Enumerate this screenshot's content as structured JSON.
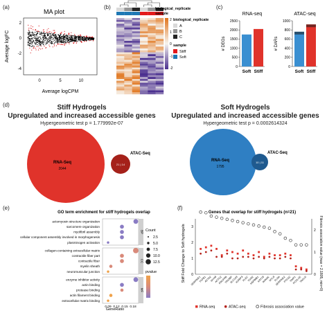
{
  "panels": {
    "a": "(a)",
    "b": "(b)",
    "c": "(c)",
    "d": "(d)",
    "e": "(e)",
    "f": "(f)"
  },
  "ma_plot": {
    "title": "MA plot",
    "xlabel": "Average logCPM",
    "ylabel": "Average logFC",
    "x_ticks": [
      "0",
      "5",
      "10"
    ],
    "y_ticks": [
      "2",
      "0",
      "-2",
      "-4"
    ],
    "colors": {
      "up": "#d7191c",
      "nonsig": "#000000"
    }
  },
  "heatmap": {
    "legend_group_title": "biological_replicate",
    "legend_sample_title": "sample",
    "top_track_1": "biological_replicate",
    "top_track_2": "sample",
    "replicates": [
      "A",
      "B",
      "C"
    ],
    "replicate_colors": [
      "#d9d9d9",
      "#969696",
      "#252525"
    ],
    "samples": [
      "Stiff",
      "Soft"
    ],
    "sample_colors": [
      "#e31a1c",
      "#1f78b4"
    ],
    "color_scale_ticks": [
      "2",
      "1",
      "0",
      "-1",
      "-2"
    ],
    "color_high": "#f28e1c",
    "color_low": "#6a4aa0"
  },
  "chart_data": [
    {
      "type": "bar",
      "title": "RNA-seq",
      "ylabel": "# DEGs",
      "categories": [
        "Soft",
        "Stiff"
      ],
      "values": [
        1750,
        2050
      ],
      "colors": [
        "#3a8fd1",
        "#e0332b"
      ],
      "ylim": [
        0,
        2500
      ],
      "yticks": [
        "0",
        "500",
        "1000",
        "1500",
        "2000",
        "2500"
      ]
    },
    {
      "type": "bar",
      "title": "ATAC-seq",
      "ylabel": "# DARs",
      "categories": [
        "Soft",
        "Stiff"
      ],
      "values": [
        760,
        920
      ],
      "stack_dark": [
        60,
        60
      ],
      "colors": [
        "#3a8fd1",
        "#e0332b"
      ],
      "ylim": [
        0,
        1000
      ],
      "yticks": [
        "0",
        "200",
        "400",
        "600",
        "800",
        "1000"
      ]
    },
    {
      "type": "scatter",
      "title": "GO term enrichment for stiff hydrogels overlap",
      "xlabel": "GeneRatio",
      "x_ticks": [
        "0.09",
        "0.12",
        "0.15",
        "0.18"
      ],
      "xlim": [
        0.07,
        0.2
      ],
      "groups": [
        "BP",
        "CC",
        "MF"
      ],
      "terms": [
        {
          "label": "actomyosin structure organization",
          "x": 0.19,
          "size": 4,
          "color": "#8a7cc4",
          "group": 0
        },
        {
          "label": "sarcomere organization",
          "x": 0.14,
          "size": 3,
          "color": "#8a7cc4",
          "group": 0
        },
        {
          "label": "myofibril assembly",
          "x": 0.14,
          "size": 3,
          "color": "#8a7cc4",
          "group": 0
        },
        {
          "label": "cellular component assembly involved in morphogenesis",
          "x": 0.14,
          "size": 3,
          "color": "#8a7cc4",
          "group": 0
        },
        {
          "label": "plasminogen activation",
          "x": 0.09,
          "size": 1,
          "color": "#8a7cc4",
          "group": 0
        },
        {
          "label": "collagen-containing extracellular matrix",
          "x": 0.19,
          "size": 5,
          "color": "#d98a7a",
          "group": 1
        },
        {
          "label": "contractile fiber part",
          "x": 0.14,
          "size": 3,
          "color": "#d98a7a",
          "group": 1
        },
        {
          "label": "contractile fiber",
          "x": 0.14,
          "size": 3,
          "color": "#d98a7a",
          "group": 1
        },
        {
          "label": "myelin sheath",
          "x": 0.1,
          "size": 2,
          "color": "#d98a7a",
          "group": 1
        },
        {
          "label": "neuromuscular junction",
          "x": 0.09,
          "size": 1,
          "color": "#f0a24a",
          "group": 1
        },
        {
          "label": "enzyme inhibitor activity",
          "x": 0.19,
          "size": 4,
          "color": "#8a7cc4",
          "group": 2
        },
        {
          "label": "actin binding",
          "x": 0.14,
          "size": 3,
          "color": "#8a7cc4",
          "group": 2
        },
        {
          "label": "protease binding",
          "x": 0.14,
          "size": 2,
          "color": "#d98a7a",
          "group": 2
        },
        {
          "label": "actin filament binding",
          "x": 0.1,
          "size": 2,
          "color": "#f0a24a",
          "group": 2
        },
        {
          "label": "extracellular matrix binding",
          "x": 0.09,
          "size": 1,
          "color": "#f0a24a",
          "group": 2
        }
      ],
      "size_legend_title": "Count",
      "size_legend": [
        "2.5",
        "5.0",
        "7.5",
        "10.0",
        "12.5"
      ],
      "color_legend_title": "pvalue"
    },
    {
      "type": "scatter",
      "title": "Genes that overlap for stiff hydrogels (n=21)",
      "ylabel": "Stiff Fold Change to Soft hydrogels",
      "y2label": "Fibrosis association value (max = 2.1805, min=0)",
      "yticks": [
        "0",
        "1",
        "2",
        "3"
      ],
      "y2ticks": [
        "0",
        "1",
        "2"
      ],
      "ylim": [
        0,
        3.5
      ],
      "y2lim": [
        0,
        2.5
      ],
      "genes": [
        "SERPINE1",
        "TGFB1",
        "ACTA2",
        "MYH9",
        "ACTG2",
        "PDGFRB",
        "TRIOBP",
        "SLC1A3",
        "IGFBP3",
        "PLEC",
        "TGM2",
        "HSP90B1",
        "KRT18",
        "AHNAK",
        "MYL9",
        "FLNA",
        "SERPINE2",
        "PTGS2",
        "TIMP1",
        "PCOLCE",
        "TAGLN"
      ],
      "rna_seq": [
        1.6,
        1.7,
        1.8,
        1.6,
        1.2,
        1.5,
        1.4,
        1.3,
        1.5,
        1.3,
        1.2,
        1.4,
        1.1,
        1.3,
        1.2,
        1.2,
        1.3,
        1.2,
        0.5,
        0.4,
        0.3
      ],
      "atac_seq": [
        1.3,
        1.4,
        1.5,
        1.1,
        1.1,
        1.3,
        1.0,
        1.0,
        1.1,
        1.1,
        1.0,
        1.1,
        1.0,
        1.1,
        1.0,
        1.0,
        1.1,
        1.0,
        0.3,
        0.3,
        0.2
      ],
      "fibrosis_value": [
        2.18,
        2.15,
        2.0,
        1.95,
        1.9,
        1.85,
        1.8,
        1.75,
        1.7,
        1.65,
        1.6,
        1.55,
        1.5,
        1.45,
        1.3,
        1.2,
        1.0,
        0.9,
        0.7,
        0.7,
        0.7
      ],
      "legend": [
        "RNA-seq",
        "ATAC-seq",
        "Fibrosis association value"
      ],
      "colors": {
        "rna": "#e0332b",
        "atac": "#b4231c",
        "fibrosis": "#444444"
      }
    }
  ],
  "venn_stiff": {
    "title": "Stiff Hydrogels",
    "subtitle": "Upregulated and increased accessible genes",
    "test": "Hypergeometric test p = 1.779992e-07",
    "big_label": "RNA-Seq",
    "big_count": "2044",
    "small_label": "ATAC-Seq",
    "overlap_text": "21 | 14",
    "big_color": "#e0332b",
    "small_color": "#a5211a"
  },
  "venn_soft": {
    "title": "Soft Hydrogels",
    "subtitle": "Upregulated and increased accessible genes",
    "test": "Hypergeometric test p = 0.0002614324",
    "big_label": "RNA-Seq",
    "big_count": "1795",
    "small_label": "ATAC-Seq",
    "overlap_text": "10 | 11",
    "big_color": "#2f7fc3",
    "small_color": "#1f5a8f"
  }
}
